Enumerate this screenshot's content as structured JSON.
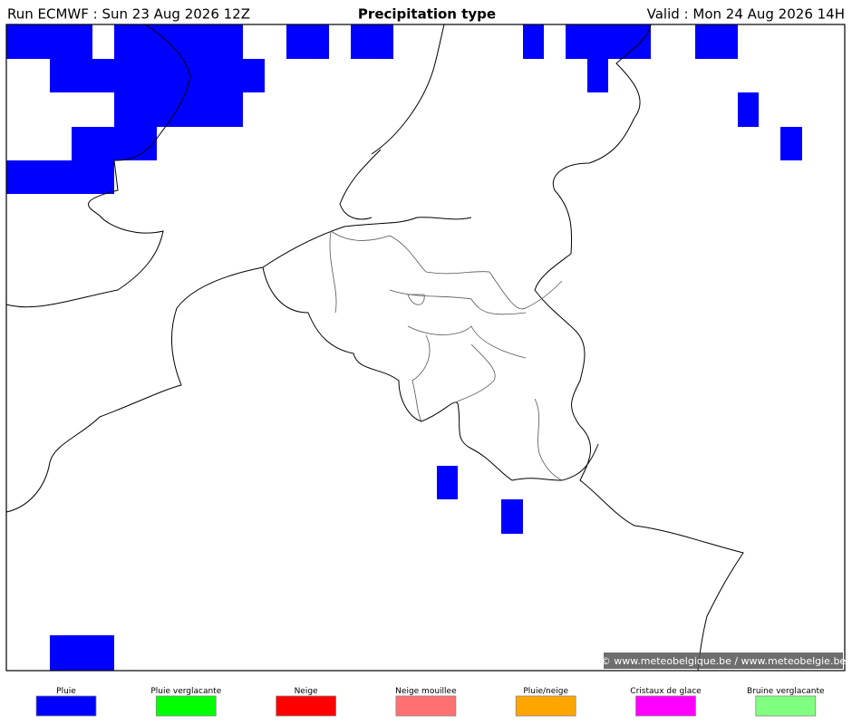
{
  "header": {
    "run": "Run ECMWF : Sun 23 Aug 2026 12Z",
    "title": "Precipitation type",
    "valid": "Valid : Mon 24 Aug 2026 14H"
  },
  "watermark": "© www.meteobelgique.be / www.meteobelgie.be",
  "legend": [
    {
      "label": "Pluie",
      "color": "#0000ff"
    },
    {
      "label": "Pluie verglacante",
      "color": "#00ff00"
    },
    {
      "label": "Neige",
      "color": "#ff0000"
    },
    {
      "label": "Neige mouillee",
      "color": "#ff7070"
    },
    {
      "label": "Pluie/neige",
      "color": "#ffa500"
    },
    {
      "label": "Cristaux de glace",
      "color": "#ff00ff"
    },
    {
      "label": "Bruine verglacante",
      "color": "#80ff80"
    }
  ]
}
